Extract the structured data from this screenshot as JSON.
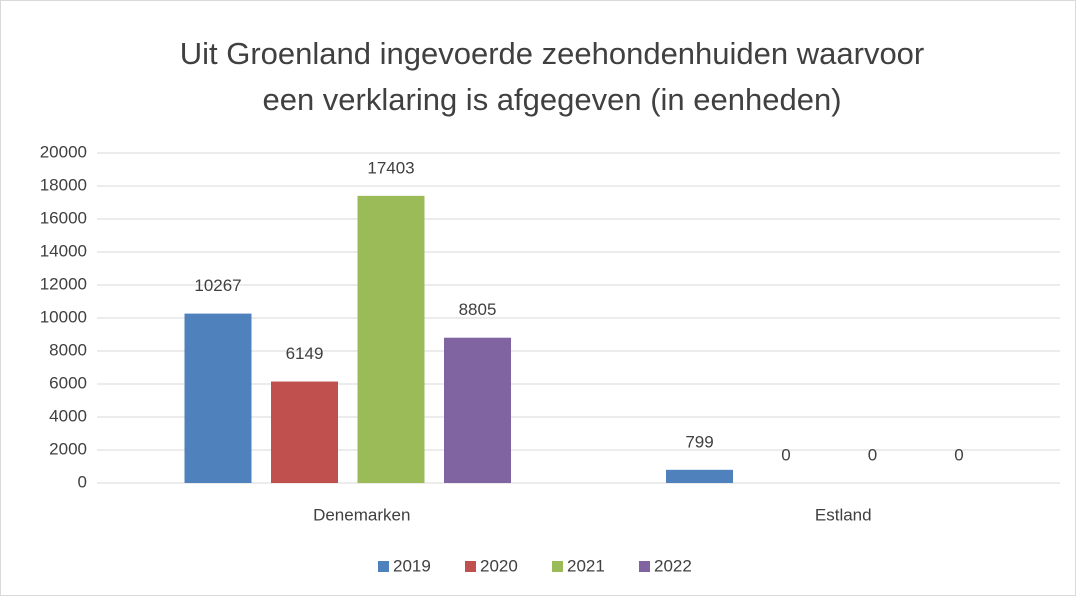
{
  "chart_data": {
    "type": "bar",
    "title": [
      "Uit Groenland ingevoerde zeehondenhuiden waarvoor",
      "een verklaring is afgegeven (in eenheden)"
    ],
    "categories": [
      "Denemarken",
      "Estland"
    ],
    "series": [
      {
        "name": "2019",
        "color": "#4f81bd",
        "values": [
          10267,
          799
        ]
      },
      {
        "name": "2020",
        "color": "#c0504d",
        "values": [
          6149,
          0
        ]
      },
      {
        "name": "2021",
        "color": "#9bbb59",
        "values": [
          17403,
          0
        ]
      },
      {
        "name": "2022",
        "color": "#8064a2",
        "values": [
          8805,
          0
        ]
      }
    ],
    "ylim": [
      0,
      20000
    ],
    "yticks": [
      0,
      2000,
      4000,
      6000,
      8000,
      10000,
      12000,
      14000,
      16000,
      18000,
      20000
    ],
    "grid": true,
    "legend": "bottom",
    "data_labels": true
  }
}
